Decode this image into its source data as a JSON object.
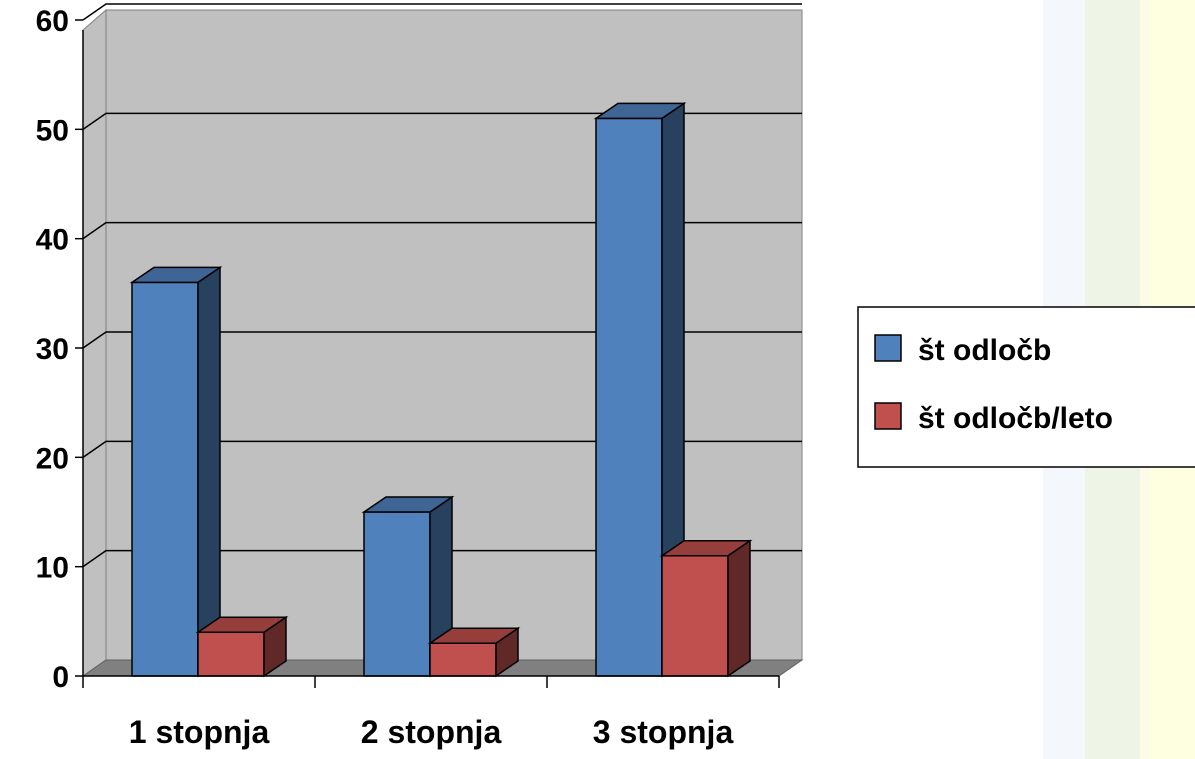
{
  "chart_data": {
    "type": "bar",
    "style": "3d-clustered-column",
    "categories": [
      "1 stopnja",
      "2 stopnja",
      "3 stopnja"
    ],
    "series": [
      {
        "name": "št odločb",
        "values": [
          36,
          15,
          51
        ],
        "color": "#4f81bd"
      },
      {
        "name": "št odločb/leto",
        "values": [
          4,
          3,
          11
        ],
        "color": "#c0504d"
      }
    ],
    "title": "",
    "xlabel": "",
    "ylabel": "",
    "ylim": [
      0,
      60
    ],
    "yticks": [
      0,
      10,
      20,
      30,
      40,
      50,
      60
    ],
    "grid": true,
    "legend_position": "right"
  }
}
